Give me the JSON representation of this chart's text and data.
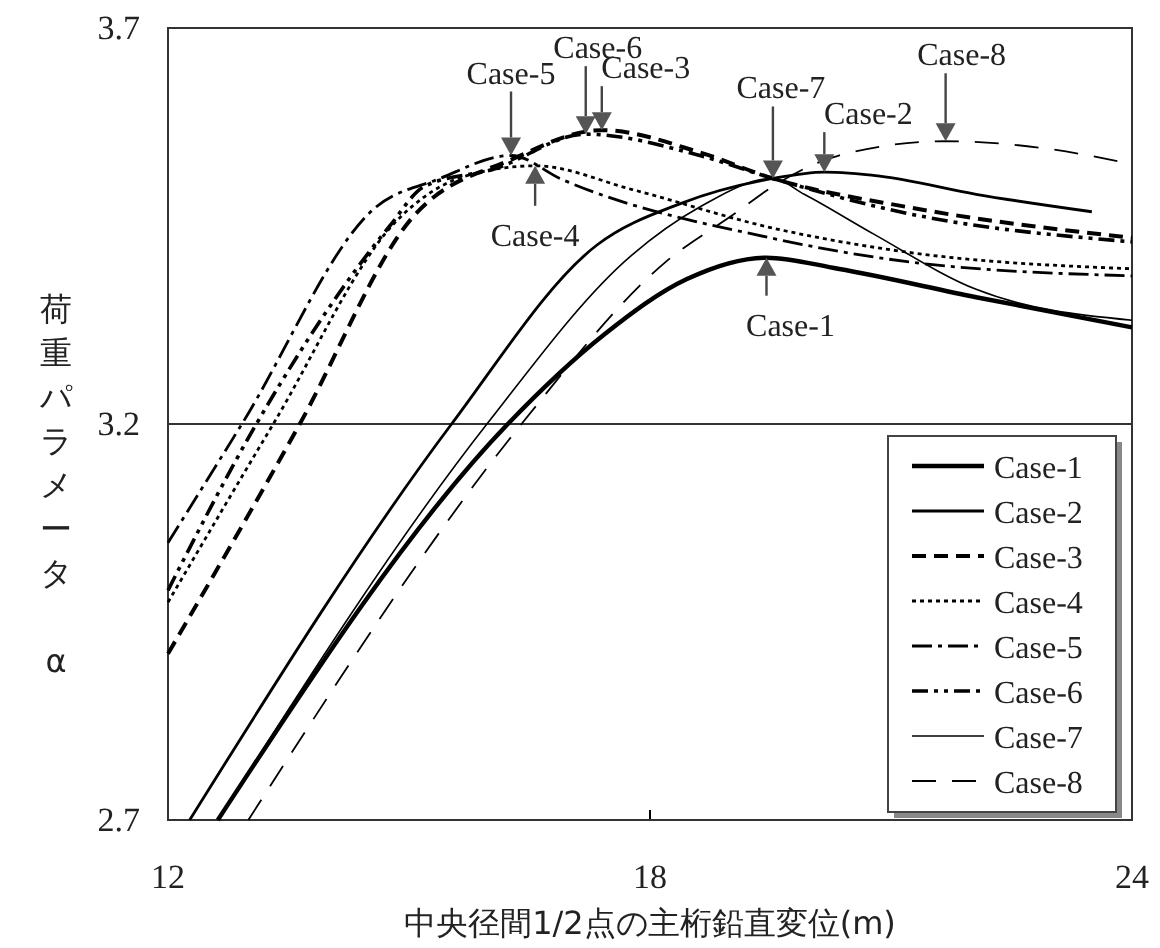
{
  "chart_data": {
    "type": "line",
    "xlabel": "中央径間1/2点の主桁鉛直変位(m)",
    "ylabel": "荷重パラメータ　α",
    "xlim": [
      12,
      24
    ],
    "xticks": [
      12,
      18,
      24
    ],
    "ylim": [
      2.7,
      3.7
    ],
    "yticks": [
      2.7,
      3.2,
      3.7
    ],
    "grid": "y",
    "legend": "bottom right",
    "series": [
      {
        "name": "Case-1",
        "color": "#000000",
        "line_style": "solid",
        "x": [
          12.62,
          16.23,
          17.43,
          18.46,
          19.45,
          20.34,
          22.06,
          24
        ],
        "values": [
          2.7,
          3.2,
          3.313,
          3.383,
          3.41,
          3.396,
          3.36,
          3.322
        ]
      },
      {
        "name": "Case-2",
        "color": "#000000",
        "line_style": "solid",
        "x": [
          12.27,
          15.53,
          17.34,
          18.37,
          19.53,
          20.17,
          20.86,
          22.06,
          23.5
        ],
        "values": [
          2.7,
          3.2,
          3.426,
          3.478,
          3.51,
          3.518,
          3.513,
          3.49,
          3.468
        ]
      },
      {
        "name": "Case-3",
        "color": "#000000",
        "line_style": "dashed",
        "x": [
          12,
          13.64,
          15.02,
          16.3,
          17.4,
          18.62,
          19.53,
          21.2,
          24
        ],
        "values": [
          2.91,
          3.2,
          3.458,
          3.535,
          3.571,
          3.543,
          3.51,
          3.474,
          3.435
        ]
      },
      {
        "name": "Case-4",
        "color": "#000000",
        "line_style": "dotted",
        "x": [
          12,
          13.31,
          14.85,
          15.7,
          16.57,
          17.78,
          19.5,
          21.2,
          24
        ],
        "values": [
          2.975,
          3.2,
          3.457,
          3.513,
          3.526,
          3.496,
          3.448,
          3.417,
          3.396
        ]
      },
      {
        "name": "Case-5",
        "color": "#000000",
        "line_style": "dashed",
        "x": [
          12,
          12.92,
          14.59,
          15.36,
          16.27,
          16.9,
          19.5,
          21.2,
          24
        ],
        "values": [
          3.05,
          3.2,
          3.474,
          3.509,
          3.539,
          3.509,
          3.435,
          3.405,
          3.387
        ]
      },
      {
        "name": "Case-6",
        "color": "#000000",
        "line_style": "dashed",
        "x": [
          12,
          13.1,
          14.76,
          15.19,
          16.06,
          17.2,
          18.62,
          19.53,
          21.2,
          24
        ],
        "values": [
          2.99,
          3.2,
          3.45,
          3.5,
          3.522,
          3.566,
          3.539,
          3.51,
          3.466,
          3.43
        ]
      },
      {
        "name": "Case-7",
        "color": "#000000",
        "line_style": "solid",
        "x": [
          12.62,
          15.97,
          17.77,
          18.62,
          19.53,
          19.92,
          20.78,
          22.06,
          24
        ],
        "values": [
          2.7,
          3.2,
          3.413,
          3.474,
          3.51,
          3.49,
          3.44,
          3.37,
          3.331
        ]
      },
      {
        "name": "Case-8",
        "color": "#000000",
        "line_style": "dashed",
        "x": [
          13.0,
          16.4,
          18.2,
          19.06,
          19.53,
          20.35,
          21.68,
          22.92,
          24
        ],
        "values": [
          2.7,
          3.2,
          3.405,
          3.466,
          3.5,
          3.539,
          3.557,
          3.548,
          3.528
        ]
      }
    ],
    "annotations": [
      {
        "text": "Case-5",
        "x": 16.27,
        "y": 3.539
      },
      {
        "text": "Case-6",
        "x": 17.2,
        "y": 3.566
      },
      {
        "text": "Case-3",
        "x": 17.4,
        "y": 3.571
      },
      {
        "text": "Case-4",
        "x": 16.57,
        "y": 3.526
      },
      {
        "text": "Case-7",
        "x": 19.53,
        "y": 3.51
      },
      {
        "text": "Case-2",
        "x": 20.17,
        "y": 3.518
      },
      {
        "text": "Case-8",
        "x": 21.68,
        "y": 3.557
      },
      {
        "text": "Case-1",
        "x": 19.45,
        "y": 3.41
      }
    ]
  }
}
